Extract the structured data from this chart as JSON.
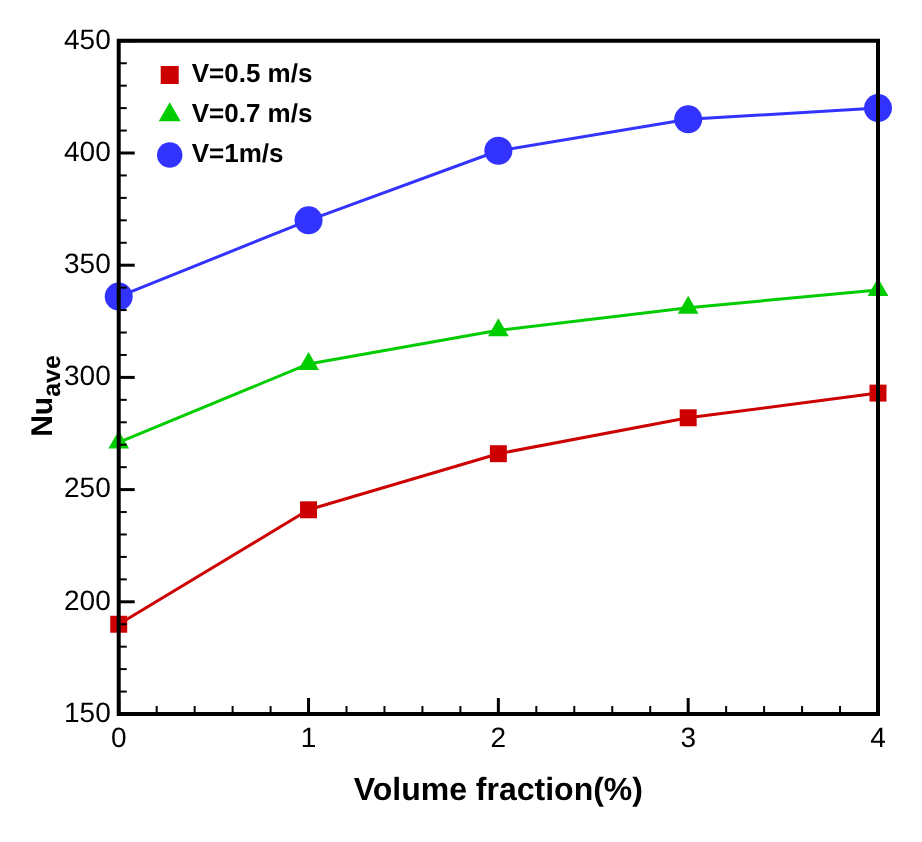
{
  "chart_data": {
    "type": "line",
    "xlabel": "Volume fraction(%)",
    "ylabel": "Nu$_{ave}$",
    "x": [
      0,
      1,
      2,
      3,
      4
    ],
    "series": [
      {
        "name": "V=0.5 m/s",
        "color": "#cc0000",
        "marker": "square",
        "values": [
          190,
          241,
          266,
          282,
          293
        ]
      },
      {
        "name": "V=0.7 m/s",
        "color": "#00cc00",
        "marker": "triangle",
        "values": [
          271,
          306,
          321,
          331,
          339
        ]
      },
      {
        "name": "V=1m/s",
        "color": "#3333ff",
        "marker": "circle",
        "values": [
          336,
          370,
          401,
          415,
          420
        ]
      }
    ],
    "xlim": [
      0,
      4
    ],
    "xticks": [
      0,
      1,
      2,
      3,
      4
    ],
    "ylim": [
      150,
      450
    ],
    "yticks": [
      150,
      200,
      250,
      300,
      350,
      400,
      450
    ],
    "grid": false,
    "legend": "top left",
    "line_style": "solid"
  }
}
